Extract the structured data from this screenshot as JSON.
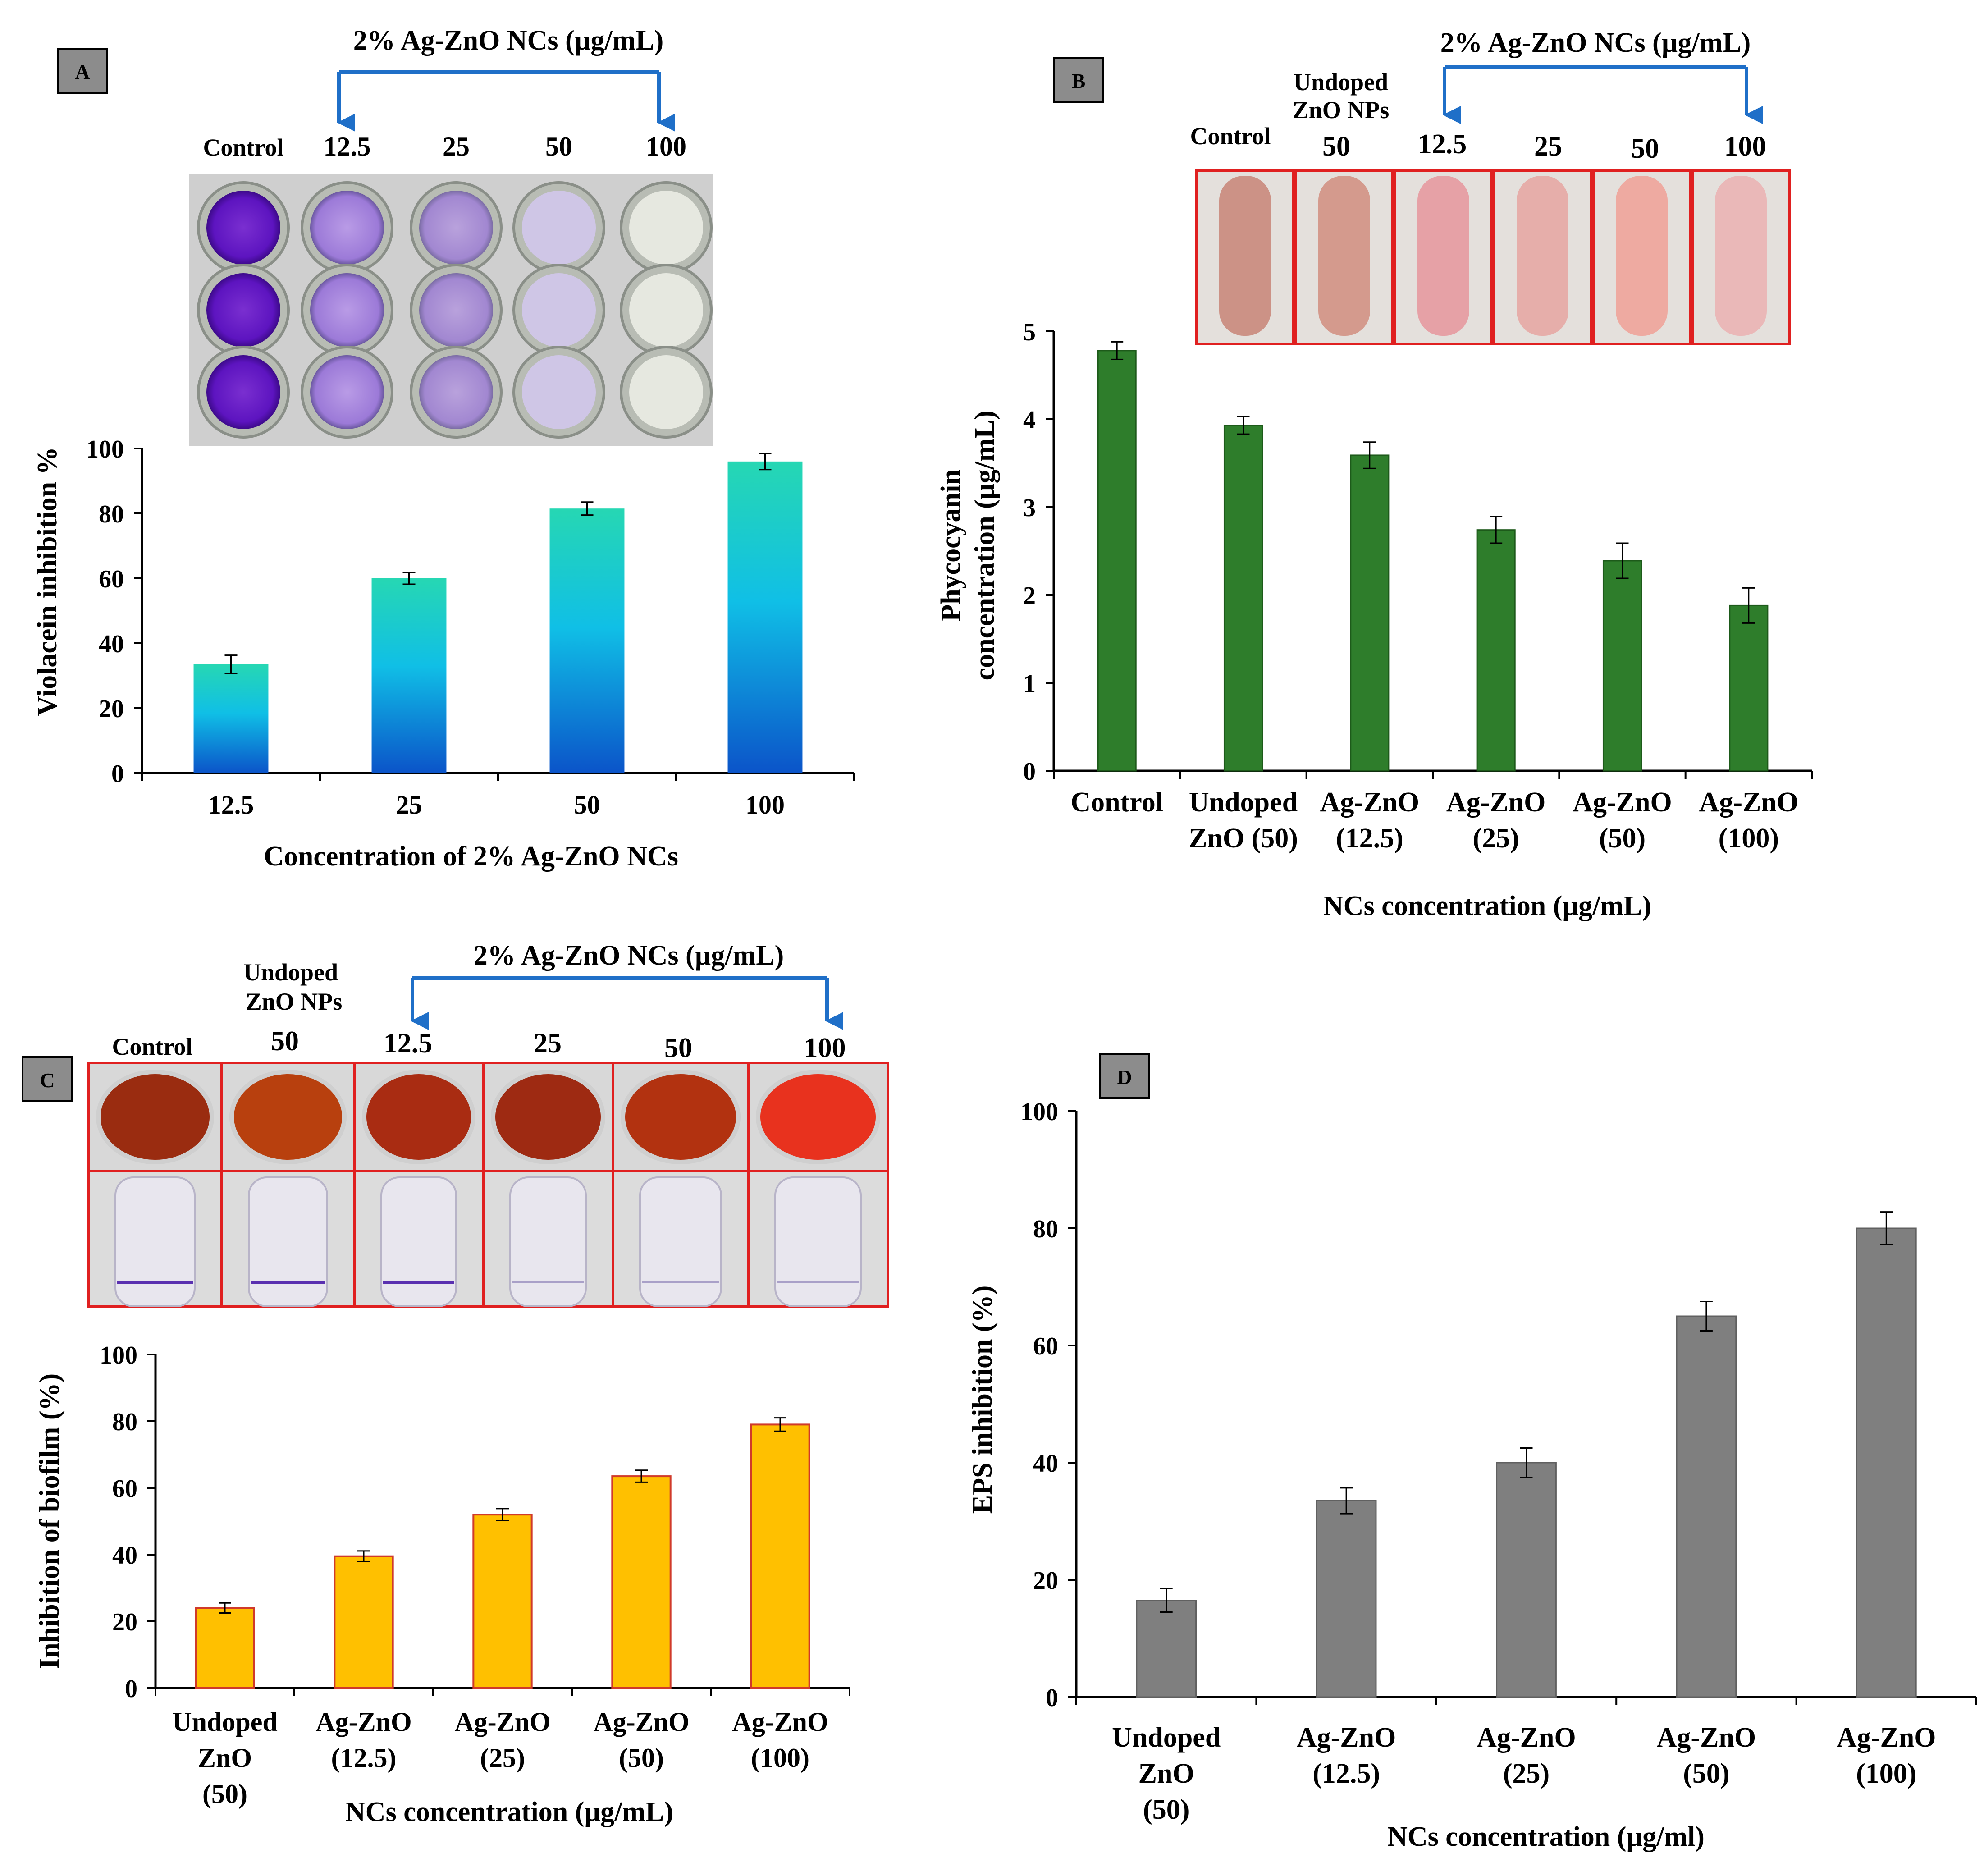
{
  "chart_data": [
    {
      "panel": "A",
      "type": "bar",
      "title": "",
      "header": "2% Ag-ZnO NCs (µg/mL)",
      "photo_labels": [
        "Control",
        "12.5",
        "25",
        "50",
        "100"
      ],
      "categories": [
        "12.5",
        "25",
        "50",
        "100"
      ],
      "values": [
        33.5,
        60,
        81.5,
        96
      ],
      "errors": [
        2.8,
        1.8,
        2,
        2.5
      ],
      "xlabel": "Concentration of 2% Ag-ZnO NCs",
      "ylabel": "Violacein inhibition %",
      "ylim": [
        0,
        100
      ],
      "yticks": [
        0,
        20,
        40,
        60,
        80,
        100
      ],
      "bar_fill": "gradient",
      "colors": {
        "top": "#26d7b3",
        "mid": "#10bfe6",
        "bottom": "#0b54c9"
      }
    },
    {
      "panel": "B",
      "type": "bar",
      "title": "",
      "header": "2% Ag-ZnO NCs (µg/mL)",
      "photo_labels": [
        "Control",
        "Undoped",
        "ZnO NPs",
        "50",
        "12.5",
        "25",
        "50",
        "100"
      ],
      "categories": [
        [
          "Control"
        ],
        [
          "Undoped",
          "ZnO (50)"
        ],
        [
          "Ag-ZnO",
          "(12.5)"
        ],
        [
          "Ag-ZnO",
          "(25)"
        ],
        [
          "Ag-ZnO",
          "(50)"
        ],
        [
          "Ag-ZnO",
          "(100)"
        ]
      ],
      "values": [
        4.78,
        3.93,
        3.59,
        2.74,
        2.39,
        1.88
      ],
      "errors": [
        0.1,
        0.1,
        0.15,
        0.15,
        0.2,
        0.2
      ],
      "xlabel": "NCs concentration (µg/mL)",
      "ylabel": [
        "Phycocyanin",
        "concentration (µg/mL)"
      ],
      "ylim": [
        0,
        5
      ],
      "yticks": [
        0,
        1,
        2,
        3,
        4,
        5
      ],
      "colors": {
        "fill": "#2e7d2b",
        "stroke": "#1d5a1a"
      }
    },
    {
      "panel": "C",
      "type": "bar",
      "title": "",
      "header": "2% Ag-ZnO NCs (µg/mL)",
      "photo_labels": [
        "Control",
        "Undoped",
        "ZnO NPs",
        "50",
        "12.5",
        "25",
        "50",
        "100"
      ],
      "categories": [
        [
          "Undoped",
          "ZnO",
          "(50)"
        ],
        [
          "Ag-ZnO",
          "(12.5)"
        ],
        [
          "Ag-ZnO",
          "(25)"
        ],
        [
          "Ag-ZnO",
          "(50)"
        ],
        [
          "Ag-ZnO",
          "(100)"
        ]
      ],
      "values": [
        24,
        39.5,
        52,
        63.5,
        79
      ],
      "errors": [
        1.5,
        1.6,
        1.8,
        1.8,
        2
      ],
      "xlabel": "NCs concentration (µg/mL)",
      "ylabel": "Inhibition of biofilm (%)",
      "ylim": [
        0,
        100
      ],
      "yticks": [
        0,
        20,
        40,
        60,
        80,
        100
      ],
      "colors": {
        "fill": "#ffc000",
        "stroke": "#d03a2a"
      }
    },
    {
      "panel": "D",
      "type": "bar",
      "title": "",
      "categories": [
        [
          "Undoped",
          "ZnO",
          "(50)"
        ],
        [
          "Ag-ZnO",
          "(12.5)"
        ],
        [
          "Ag-ZnO",
          "(25)"
        ],
        [
          "Ag-ZnO",
          "(50)"
        ],
        [
          "Ag-ZnO",
          "(100)"
        ]
      ],
      "values": [
        16.5,
        33.5,
        40,
        65,
        80
      ],
      "errors": [
        2,
        2.2,
        2.5,
        2.5,
        2.8
      ],
      "xlabel": "NCs concentration  (µg/ml)",
      "ylabel": "EPS inhibition  (%)",
      "ylim": [
        0,
        100
      ],
      "yticks": [
        0,
        20,
        40,
        60,
        80,
        100
      ],
      "colors": {
        "fill": "#7f7f7f",
        "stroke": "#606060"
      }
    }
  ]
}
